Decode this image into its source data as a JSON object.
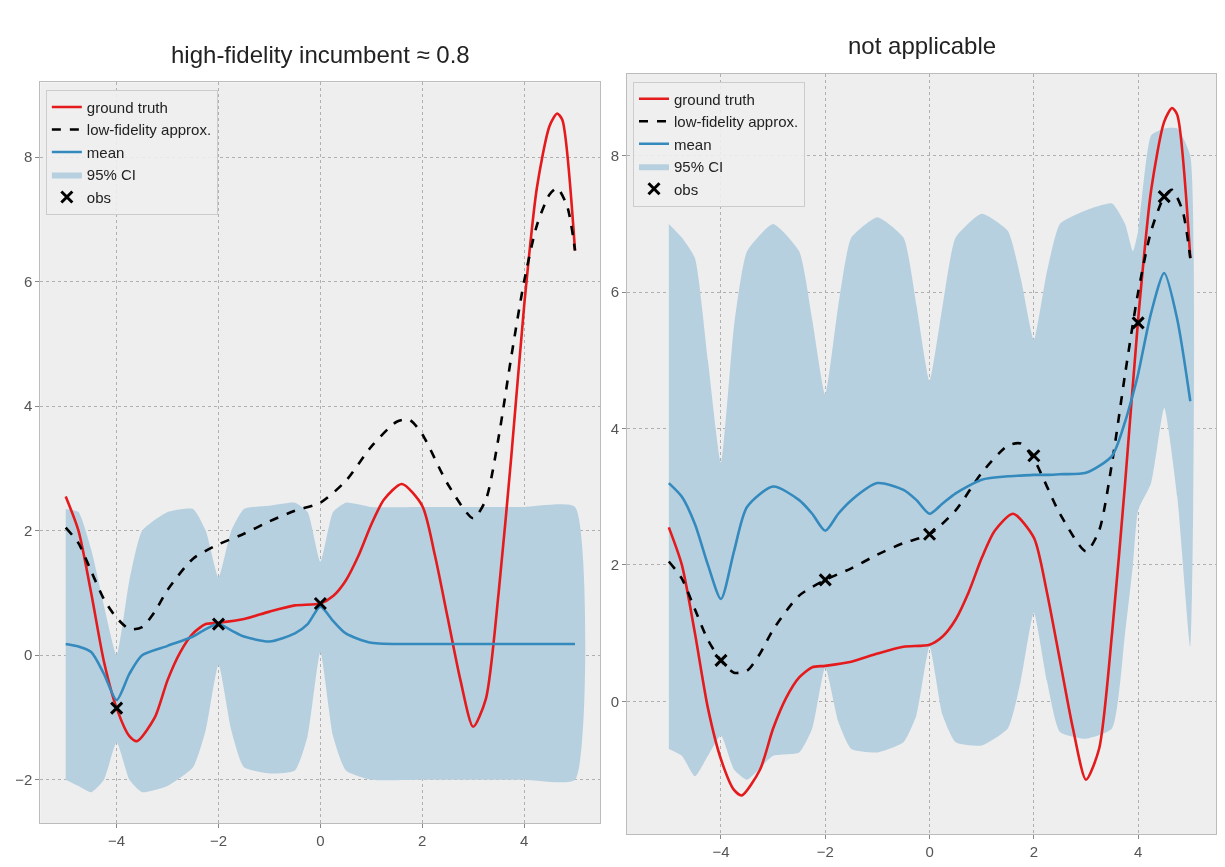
{
  "chart_data": [
    {
      "type": "line",
      "title": "high-fidelity incumbent ≈ 0.8",
      "xlim": [
        -5.5,
        5.5
      ],
      "ylim": [
        -2.7,
        9.2
      ],
      "xticks": [
        -4,
        -2,
        0,
        2,
        4
      ],
      "yticks": [
        -2,
        0,
        2,
        4,
        6,
        8
      ],
      "grid": true,
      "legend": "top left",
      "series": [
        {
          "name": "ground truth",
          "color": "#e41a1c",
          "line_style": "solid",
          "x": [
            -5,
            -4.75,
            -4.5,
            -4.25,
            -4,
            -3.75,
            -3.6,
            -3.25,
            -3,
            -2.75,
            -2.5,
            -2.25,
            -2,
            -1.5,
            -1,
            -0.5,
            0,
            0.25,
            0.5,
            0.75,
            1,
            1.25,
            1.6,
            2,
            2.25,
            2.5,
            2.75,
            3,
            3.25,
            3.5,
            3.75,
            4,
            4.25,
            4.5,
            4.65,
            4.75,
            5
          ],
          "values": [
            2.55,
            2.0,
            1.0,
            -0.1,
            -0.85,
            -1.3,
            -1.38,
            -1.0,
            -0.4,
            0.05,
            0.35,
            0.5,
            0.52,
            0.58,
            0.7,
            0.8,
            0.83,
            0.95,
            1.2,
            1.6,
            2.1,
            2.5,
            2.75,
            2.4,
            1.6,
            0.6,
            -0.4,
            -1.15,
            -0.7,
            1.0,
            3.2,
            5.6,
            7.5,
            8.5,
            8.7,
            8.6,
            6.5
          ]
        },
        {
          "name": "low-fidelity approx.",
          "color": "#000000",
          "line_style": "dashed",
          "x": [
            -5,
            -4.75,
            -4.5,
            -4.25,
            -4,
            -3.75,
            -3.5,
            -3.25,
            -3,
            -2.5,
            -2,
            -1.5,
            -1,
            -0.5,
            0,
            0.5,
            1,
            1.5,
            1.75,
            2,
            2.5,
            3,
            3.25,
            3.5,
            3.75,
            4,
            4.25,
            4.5,
            4.65,
            4.85,
            5
          ],
          "values": [
            2.05,
            1.8,
            1.35,
            0.9,
            0.6,
            0.42,
            0.45,
            0.7,
            1.05,
            1.55,
            1.78,
            1.95,
            2.15,
            2.32,
            2.45,
            2.8,
            3.35,
            3.75,
            3.78,
            3.55,
            2.75,
            2.2,
            2.5,
            3.5,
            4.8,
            6.0,
            6.9,
            7.4,
            7.5,
            7.2,
            6.5
          ]
        },
        {
          "name": "mean",
          "color": "#348abd",
          "line_style": "solid",
          "x": [
            -5,
            -4.75,
            -4.5,
            -4.25,
            -4,
            -3.75,
            -3.5,
            -3,
            -2.5,
            -2.25,
            -2,
            -1.75,
            -1.5,
            -1,
            -0.5,
            -0.25,
            0,
            0.25,
            0.5,
            1,
            2,
            3,
            4,
            5
          ],
          "values": [
            0.18,
            0.14,
            0.05,
            -0.3,
            -0.72,
            -0.3,
            0.0,
            0.15,
            0.3,
            0.42,
            0.5,
            0.4,
            0.3,
            0.22,
            0.35,
            0.5,
            0.78,
            0.55,
            0.35,
            0.2,
            0.18,
            0.18,
            0.18,
            0.18
          ],
          "upper": [
            2.35,
            2.3,
            1.7,
            0.8,
            0.0,
            1.2,
            2.0,
            2.3,
            2.35,
            2.0,
            1.25,
            2.0,
            2.35,
            2.4,
            2.45,
            2.3,
            1.5,
            2.3,
            2.45,
            2.38,
            2.38,
            2.38,
            2.38,
            2.38
          ],
          "lower": [
            -2.0,
            -2.1,
            -2.2,
            -2.0,
            -1.4,
            -2.0,
            -2.2,
            -2.1,
            -1.8,
            -1.2,
            -0.15,
            -1.2,
            -1.8,
            -1.9,
            -1.85,
            -1.3,
            0.05,
            -1.3,
            -1.85,
            -2.0,
            -2.0,
            -2.0,
            -2.0,
            -2.0
          ]
        },
        {
          "name": "95% CI",
          "type": "area",
          "color": "#b7d0e0"
        },
        {
          "name": "obs",
          "type": "scatter",
          "color": "#000000",
          "marker": "cross",
          "x": [
            -4,
            -2,
            0
          ],
          "values": [
            -0.85,
            0.5,
            0.83
          ]
        }
      ]
    },
    {
      "type": "line",
      "title": "not applicable",
      "xlim": [
        -5.8,
        5.5
      ],
      "ylim": [
        -1.95,
        9.2
      ],
      "xticks": [
        -4,
        -2,
        0,
        2,
        4
      ],
      "yticks": [
        0,
        2,
        4,
        6,
        8
      ],
      "grid": true,
      "legend": "top left",
      "series": [
        {
          "name": "ground truth",
          "color": "#e41a1c",
          "line_style": "solid",
          "x": [
            -5,
            -4.75,
            -4.5,
            -4.25,
            -4,
            -3.75,
            -3.6,
            -3.25,
            -3,
            -2.75,
            -2.5,
            -2.25,
            -2,
            -1.5,
            -1,
            -0.5,
            0,
            0.25,
            0.5,
            0.75,
            1,
            1.25,
            1.6,
            2,
            2.25,
            2.5,
            2.75,
            3,
            3.25,
            3.5,
            3.75,
            4,
            4.25,
            4.5,
            4.65,
            4.75,
            5
          ],
          "values": [
            2.55,
            2.0,
            1.0,
            -0.1,
            -0.85,
            -1.3,
            -1.38,
            -1.0,
            -0.4,
            0.05,
            0.35,
            0.5,
            0.52,
            0.58,
            0.7,
            0.8,
            0.83,
            0.95,
            1.2,
            1.6,
            2.1,
            2.5,
            2.75,
            2.4,
            1.6,
            0.6,
            -0.4,
            -1.15,
            -0.7,
            1.0,
            3.2,
            5.6,
            7.5,
            8.5,
            8.7,
            8.6,
            6.5
          ]
        },
        {
          "name": "low-fidelity approx.",
          "color": "#000000",
          "line_style": "dashed",
          "x": [
            -5,
            -4.75,
            -4.5,
            -4.25,
            -4,
            -3.75,
            -3.5,
            -3.25,
            -3,
            -2.5,
            -2,
            -1.5,
            -1,
            -0.5,
            0,
            0.5,
            1,
            1.5,
            1.75,
            2,
            2.5,
            3,
            3.25,
            3.5,
            3.75,
            4,
            4.25,
            4.5,
            4.65,
            4.85,
            5
          ],
          "values": [
            2.05,
            1.8,
            1.35,
            0.9,
            0.6,
            0.42,
            0.45,
            0.7,
            1.05,
            1.55,
            1.78,
            1.95,
            2.15,
            2.32,
            2.45,
            2.8,
            3.35,
            3.75,
            3.78,
            3.55,
            2.75,
            2.2,
            2.5,
            3.5,
            4.8,
            6.0,
            6.9,
            7.4,
            7.5,
            7.2,
            6.5
          ]
        },
        {
          "name": "mean",
          "color": "#348abd",
          "line_style": "solid",
          "x": [
            -5,
            -4.75,
            -4.5,
            -4.25,
            -4,
            -3.75,
            -3.5,
            -3,
            -2.5,
            -2.25,
            -2,
            -1.75,
            -1.5,
            -1,
            -0.5,
            -0.25,
            0,
            0.25,
            0.5,
            1,
            1.5,
            1.75,
            2,
            2.25,
            2.5,
            3,
            3.5,
            3.75,
            3.9,
            4,
            4.25,
            4.5,
            4.75,
            5
          ],
          "values": [
            3.2,
            3.0,
            2.6,
            2.0,
            1.5,
            2.2,
            2.85,
            3.15,
            2.95,
            2.75,
            2.5,
            2.75,
            2.95,
            3.2,
            3.1,
            2.95,
            2.75,
            2.9,
            3.05,
            3.25,
            3.3,
            3.31,
            3.32,
            3.32,
            3.33,
            3.35,
            3.6,
            4.1,
            4.5,
            4.8,
            5.7,
            6.28,
            5.6,
            4.4
          ],
          "upper": [
            7.0,
            6.8,
            6.5,
            5.0,
            3.5,
            5.5,
            6.6,
            7.0,
            6.6,
            5.6,
            4.5,
            5.8,
            6.8,
            7.1,
            6.8,
            5.8,
            4.7,
            5.8,
            6.8,
            7.15,
            6.9,
            6.2,
            5.3,
            6.3,
            7.0,
            7.2,
            7.3,
            7.0,
            6.6,
            6.9,
            8.3,
            8.4,
            8.4,
            8.0
          ],
          "lower": [
            -0.7,
            -0.8,
            -1.1,
            -0.8,
            -0.5,
            -1.0,
            -1.15,
            -0.8,
            -0.75,
            -0.4,
            0.5,
            -0.3,
            -0.7,
            -0.75,
            -0.6,
            -0.2,
            0.8,
            -0.2,
            -0.6,
            -0.65,
            -0.4,
            0.3,
            1.3,
            0.3,
            -0.45,
            -0.55,
            -0.4,
            1.0,
            2.0,
            2.8,
            3.2,
            4.3,
            3.0,
            0.8
          ]
        },
        {
          "name": "95% CI",
          "type": "area",
          "color": "#b7d0e0"
        },
        {
          "name": "obs",
          "type": "scatter",
          "color": "#000000",
          "marker": "cross",
          "x": [
            -4,
            -2,
            0,
            2,
            4,
            4.5
          ],
          "values": [
            0.6,
            1.78,
            2.45,
            3.6,
            5.55,
            7.4
          ]
        }
      ]
    }
  ]
}
